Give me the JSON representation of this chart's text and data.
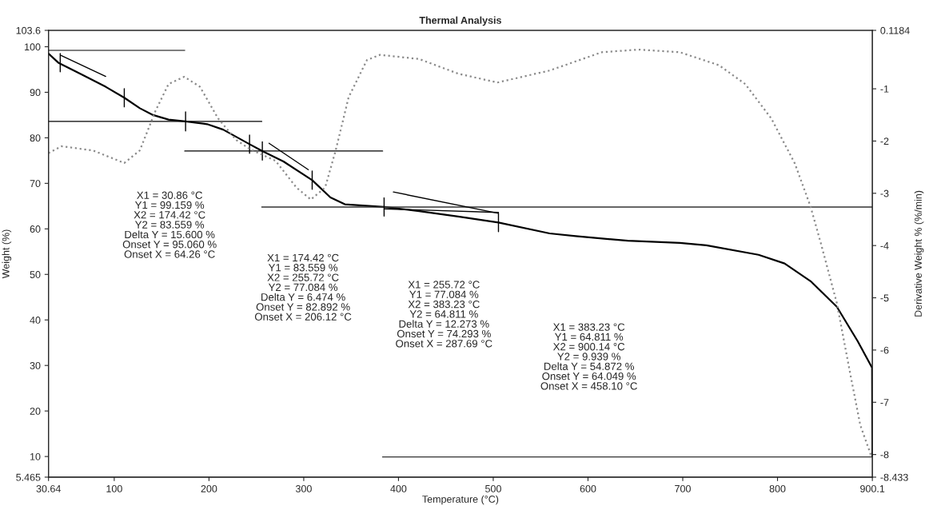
{
  "chart_data": {
    "type": "line",
    "title": "Thermal Analysis",
    "xlabel": "Temperature (°C)",
    "ylabel": "Weight (%)",
    "y2label": "Derivative Weight % (%/min)",
    "xlim": [
      30.64,
      900.1
    ],
    "xticks": [
      30.64,
      100,
      200,
      300,
      400,
      500,
      600,
      700,
      800,
      900.1
    ],
    "ylim": [
      5.465,
      103.6
    ],
    "yticks": [
      5.465,
      10,
      20,
      30,
      40,
      50,
      60,
      70,
      80,
      90,
      100,
      103.6
    ],
    "y2lim": [
      -8.433,
      0.1184
    ],
    "y2ticks": [
      -8.433,
      -8,
      -7,
      -6,
      -5,
      -4,
      -3,
      -2,
      -1,
      0.1184
    ],
    "grid": false,
    "legend": false,
    "marker": "none",
    "series": [
      {
        "color": "#000000",
        "line_style": "solid",
        "x": [
          30.64,
          41,
          63.7,
          91,
          110.6,
          127,
          141,
          157.3,
          175.3,
          198,
          214.9,
          242.8,
          256.3,
          278.6,
          308.9,
          328.2,
          343.4,
          384.8,
          421.8,
          463,
          505.5,
          559.5,
          587,
          642,
          697,
          724.9,
          780,
          807.5,
          835,
          862.6,
          884.7,
          899.8,
          900.1
        ],
        "values": [
          98.5,
          96.5,
          94.1,
          91.2,
          88.8,
          86.5,
          85.0,
          84.0,
          83.6,
          83.0,
          81.8,
          78.6,
          77.1,
          74.8,
          70.7,
          66.9,
          65.4,
          64.8,
          63.9,
          62.7,
          61.4,
          59.0,
          58.4,
          57.4,
          56.9,
          56.4,
          54.3,
          52.4,
          48.5,
          42.9,
          35.3,
          29.5,
          10.0
        ]
      },
      {
        "color": "#8a8a8a",
        "line_style": "dotted",
        "axis": "y2",
        "x": [
          30.64,
          44.4,
          77.5,
          110.6,
          127,
          143.6,
          157.3,
          173.9,
          190.4,
          209.7,
          228.8,
          242.8,
          270.3,
          292.3,
          307.5,
          322.6,
          333.7,
          347.4,
          366.7,
          380.5,
          421.8,
          463,
          504.4,
          559.5,
          614.6,
          653.2,
          697,
          738.4,
          766,
          793.5,
          818.3,
          834.8,
          845.8,
          862.6,
          876.4,
          887.4,
          898.4
        ],
        "values": [
          -2.23,
          -2.1,
          -2.18,
          -2.42,
          -2.18,
          -1.42,
          -0.91,
          -0.77,
          -0.96,
          -1.57,
          -1.98,
          -2.15,
          -2.38,
          -2.89,
          -3.12,
          -2.89,
          -2.18,
          -1.16,
          -0.45,
          -0.35,
          -0.43,
          -0.71,
          -0.88,
          -0.65,
          -0.3,
          -0.25,
          -0.3,
          -0.55,
          -0.91,
          -1.57,
          -2.43,
          -3.25,
          -3.96,
          -5.1,
          -6.42,
          -7.44,
          -8.0
        ]
      },
      {
        "color": "#555555",
        "line_style": "solid",
        "x": [
          30.64,
          174.4
        ],
        "values": [
          99.2,
          99.2
        ]
      },
      {
        "color": "#000000",
        "line_style": "solid",
        "x": [
          30.64,
          255.7
        ],
        "values": [
          83.6,
          83.6
        ]
      },
      {
        "color": "#000000",
        "line_style": "solid",
        "x": [
          174.4,
          383.2
        ],
        "values": [
          77.1,
          77.1
        ]
      },
      {
        "color": "#333333",
        "line_style": "solid",
        "x": [
          255.7,
          900.1
        ],
        "values": [
          64.8,
          64.8
        ]
      },
      {
        "color": "#333333",
        "line_style": "solid",
        "x": [
          383.2,
          900.1
        ],
        "values": [
          9.9,
          9.9
        ]
      },
      {
        "color": "#000000",
        "line_style": "solid",
        "x": [
          43.9,
          91
        ],
        "values": [
          98.1,
          93.5
        ]
      },
      {
        "color": "#000000",
        "line_style": "solid",
        "x": [
          263.4,
          304.8
        ],
        "values": [
          78.8,
          73.0
        ]
      },
      {
        "color": "#000000",
        "line_style": "solid",
        "x": [
          394.6,
          505.5
        ],
        "values": [
          68.1,
          63.4
        ]
      },
      {
        "color": "#000000",
        "line_style": "solid",
        "x": [
          384.8,
          505.5
        ],
        "values": [
          64.4,
          63.6
        ]
      },
      {
        "color": "#000000",
        "line_style": "solid",
        "x": [
          43,
          43
        ],
        "values": [
          94.5,
          98.5
        ]
      },
      {
        "color": "#000000",
        "line_style": "solid",
        "x": [
          110.6,
          110.6
        ],
        "values": [
          86.8,
          90.8
        ]
      },
      {
        "color": "#000000",
        "line_style": "solid",
        "x": [
          175.3,
          175.3
        ],
        "values": [
          81.5,
          85.7
        ]
      },
      {
        "color": "#000000",
        "line_style": "solid",
        "x": [
          242.8,
          242.8
        ],
        "values": [
          76.6,
          80.6
        ]
      },
      {
        "color": "#000000",
        "line_style": "solid",
        "x": [
          256.3,
          256.3
        ],
        "values": [
          75.1,
          79.1
        ]
      },
      {
        "color": "#000000",
        "line_style": "solid",
        "x": [
          308.9,
          308.9
        ],
        "values": [
          68.7,
          72.7
        ]
      },
      {
        "color": "#000000",
        "line_style": "solid",
        "x": [
          384.8,
          384.8
        ],
        "values": [
          62.8,
          66.8
        ]
      },
      {
        "color": "#000000",
        "line_style": "solid",
        "x": [
          505.5,
          505.5
        ],
        "values": [
          59.4,
          63.4
        ]
      }
    ],
    "annotations": [
      "X1 = 30.86 °C\nY1 = 99.159 %\nX2 = 174.42 °C\nY2 = 83.559 %\nDelta Y = 15.600 %\nOnset Y = 95.060 %\nOnset X = 64.26 °C",
      "X1 = 174.42 °C\nY1 = 83.559 %\nX2 = 255.72 °C\nY2 = 77.084 %\nDelta Y = 6.474 %\nOnset Y = 82.892 %\nOnset X = 206.12 °C",
      "X1 = 255.72 °C\nY1 = 77.084 %\nX2 = 383.23 °C\nY2 = 64.811 %\nDelta Y = 12.273 %\nOnset Y = 74.293 %\nOnset X = 287.69 °C",
      "X1 = 383.23 °C\nY1 = 64.811 %\nX2 = 900.14 °C\nY2 = 9.939 %\nDelta Y = 54.872 %\nOnset Y = 64.049 %\nOnset X = 458.10 °C"
    ]
  }
}
